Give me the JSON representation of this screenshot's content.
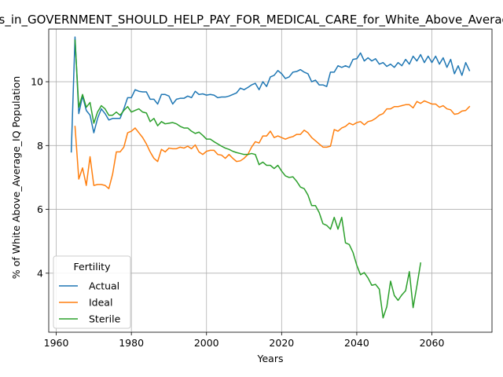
{
  "chart_data": {
    "type": "line",
    "title": "Voters_in_GOVERNMENT_SHOULD_HELP_PAY_FOR_MEDICAL_CARE_for_White_Above_Average_IQ",
    "xlabel": "Years",
    "ylabel": "% of White Above_Average_IQ Population",
    "xlim": [
      1958,
      2076
    ],
    "ylim": [
      2.15,
      11.65
    ],
    "xticks": [
      1960,
      1980,
      2000,
      2020,
      2040,
      2060
    ],
    "yticks": [
      4,
      6,
      8,
      10
    ],
    "grid": true,
    "legend": {
      "title": "Fertility",
      "placement": "lower-left"
    },
    "series": [
      {
        "name": "Actual",
        "color": "#1f77b4",
        "x": [
          1964,
          1965,
          1966,
          1967,
          1968,
          1969,
          1970,
          1971,
          1972,
          1973,
          1974,
          1975,
          1976,
          1977,
          1978,
          1979,
          1980,
          1981,
          1982,
          1983,
          1984,
          1985,
          1986,
          1987,
          1988,
          1989,
          1990,
          1991,
          1992,
          1993,
          1994,
          1995,
          1996,
          1997,
          1998,
          1999,
          2000,
          2001,
          2002,
          2003,
          2004,
          2005,
          2006,
          2007,
          2008,
          2009,
          2010,
          2011,
          2012,
          2013,
          2014,
          2015,
          2016,
          2017,
          2018,
          2019,
          2020,
          2021,
          2022,
          2023,
          2024,
          2025,
          2026,
          2027,
          2028,
          2029,
          2030,
          2031,
          2032,
          2033,
          2034,
          2035,
          2036,
          2037,
          2038,
          2039,
          2040,
          2041,
          2042,
          2043,
          2044,
          2045,
          2046,
          2047,
          2048,
          2049,
          2050,
          2051,
          2052,
          2053,
          2054,
          2055,
          2056,
          2057,
          2058,
          2059,
          2060,
          2061,
          2062,
          2063,
          2064,
          2065,
          2066,
          2067,
          2068,
          2069,
          2070
        ],
        "values": [
          7.8,
          11.4,
          9.0,
          9.55,
          9.1,
          8.95,
          8.4,
          8.85,
          9.15,
          9.0,
          8.8,
          8.85,
          8.85,
          8.85,
          9.15,
          9.5,
          9.5,
          9.75,
          9.7,
          9.68,
          9.68,
          9.45,
          9.45,
          9.3,
          9.6,
          9.6,
          9.55,
          9.3,
          9.45,
          9.48,
          9.48,
          9.55,
          9.5,
          9.7,
          9.6,
          9.62,
          9.58,
          9.6,
          9.58,
          9.5,
          9.52,
          9.52,
          9.55,
          9.6,
          9.65,
          9.8,
          9.75,
          9.82,
          9.9,
          9.95,
          9.75,
          10.0,
          9.85,
          10.15,
          10.2,
          10.35,
          10.25,
          10.1,
          10.15,
          10.3,
          10.32,
          10.38,
          10.3,
          10.25,
          10.0,
          10.05,
          9.9,
          9.9,
          9.85,
          10.3,
          10.3,
          10.5,
          10.45,
          10.5,
          10.45,
          10.7,
          10.72,
          10.9,
          10.65,
          10.75,
          10.65,
          10.72,
          10.55,
          10.6,
          10.48,
          10.55,
          10.45,
          10.6,
          10.5,
          10.7,
          10.55,
          10.8,
          10.65,
          10.85,
          10.6,
          10.8,
          10.6,
          10.8,
          10.55,
          10.75,
          10.45,
          10.7,
          10.25,
          10.5,
          10.2,
          10.6,
          10.35
        ]
      },
      {
        "name": "Ideal",
        "color": "#ff7f0e",
        "x": [
          1965,
          1966,
          1967,
          1968,
          1969,
          1970,
          1971,
          1972,
          1973,
          1974,
          1975,
          1976,
          1977,
          1978,
          1979,
          1980,
          1981,
          1982,
          1983,
          1984,
          1985,
          1986,
          1987,
          1988,
          1989,
          1990,
          1991,
          1992,
          1993,
          1994,
          1995,
          1996,
          1997,
          1998,
          1999,
          2000,
          2001,
          2002,
          2003,
          2004,
          2005,
          2006,
          2007,
          2008,
          2009,
          2010,
          2011,
          2012,
          2013,
          2014,
          2015,
          2016,
          2017,
          2018,
          2019,
          2020,
          2021,
          2022,
          2023,
          2024,
          2025,
          2026,
          2027,
          2028,
          2029,
          2030,
          2031,
          2032,
          2033,
          2034,
          2035,
          2036,
          2037,
          2038,
          2039,
          2040,
          2041,
          2042,
          2043,
          2044,
          2045,
          2046,
          2047,
          2048,
          2049,
          2050,
          2051,
          2052,
          2053,
          2054,
          2055,
          2056,
          2057,
          2058,
          2059,
          2060,
          2061,
          2062,
          2063,
          2064,
          2065,
          2066,
          2067,
          2068,
          2069,
          2070
        ],
        "values": [
          8.6,
          6.95,
          7.3,
          6.75,
          7.65,
          6.75,
          6.78,
          6.78,
          6.75,
          6.65,
          7.1,
          7.8,
          7.8,
          7.95,
          8.4,
          8.45,
          8.55,
          8.4,
          8.25,
          8.05,
          7.8,
          7.6,
          7.5,
          7.88,
          7.8,
          7.92,
          7.9,
          7.9,
          7.95,
          7.92,
          7.98,
          7.9,
          8.02,
          7.8,
          7.72,
          7.82,
          7.85,
          7.85,
          7.72,
          7.7,
          7.6,
          7.72,
          7.6,
          7.5,
          7.52,
          7.6,
          7.72,
          7.95,
          8.12,
          8.08,
          8.3,
          8.3,
          8.45,
          8.25,
          8.3,
          8.25,
          8.2,
          8.25,
          8.28,
          8.35,
          8.35,
          8.48,
          8.4,
          8.25,
          8.15,
          8.05,
          7.95,
          7.95,
          7.98,
          8.5,
          8.45,
          8.55,
          8.6,
          8.7,
          8.65,
          8.72,
          8.75,
          8.65,
          8.75,
          8.78,
          8.85,
          8.95,
          9.0,
          9.15,
          9.15,
          9.22,
          9.22,
          9.25,
          9.28,
          9.28,
          9.18,
          9.38,
          9.32,
          9.4,
          9.35,
          9.3,
          9.3,
          9.2,
          9.25,
          9.15,
          9.12,
          8.98,
          9.0,
          9.08,
          9.1,
          9.22
        ]
      },
      {
        "name": "Sterile",
        "color": "#2ca02c",
        "x": [
          1965,
          1966,
          1967,
          1968,
          1969,
          1970,
          1971,
          1972,
          1973,
          1974,
          1975,
          1976,
          1977,
          1978,
          1979,
          1980,
          1981,
          1982,
          1983,
          1984,
          1985,
          1986,
          1987,
          1988,
          1989,
          1990,
          1991,
          1992,
          1993,
          1994,
          1995,
          1996,
          1997,
          1998,
          1999,
          2000,
          2001,
          2002,
          2003,
          2004,
          2005,
          2006,
          2007,
          2008,
          2009,
          2010,
          2011,
          2012,
          2013,
          2014,
          2015,
          2016,
          2017,
          2018,
          2019,
          2020,
          2021,
          2022,
          2023,
          2024,
          2025,
          2026,
          2027,
          2028,
          2029,
          2030,
          2031,
          2032,
          2033,
          2034,
          2035,
          2036,
          2037,
          2038,
          2039,
          2040,
          2041,
          2042,
          2043,
          2044,
          2045,
          2046,
          2047,
          2048,
          2049,
          2050,
          2051,
          2052,
          2053,
          2054,
          2055,
          2056,
          2057
        ],
        "values": [
          11.3,
          9.2,
          9.6,
          9.2,
          9.35,
          8.7,
          9.05,
          9.25,
          9.15,
          8.95,
          8.95,
          9.05,
          8.95,
          9.1,
          9.22,
          9.05,
          9.1,
          9.15,
          9.05,
          9.02,
          8.75,
          8.85,
          8.62,
          8.75,
          8.68,
          8.7,
          8.72,
          8.68,
          8.6,
          8.55,
          8.55,
          8.45,
          8.38,
          8.42,
          8.32,
          8.2,
          8.2,
          8.12,
          8.05,
          7.98,
          7.92,
          7.88,
          7.82,
          7.78,
          7.75,
          7.72,
          7.72,
          7.75,
          7.72,
          7.4,
          7.48,
          7.38,
          7.38,
          7.28,
          7.38,
          7.2,
          7.05,
          7.0,
          7.02,
          6.88,
          6.7,
          6.65,
          6.45,
          6.12,
          6.12,
          5.9,
          5.55,
          5.5,
          5.38,
          5.75,
          5.38,
          5.75,
          4.95,
          4.9,
          4.65,
          4.25,
          3.95,
          4.02,
          3.85,
          3.62,
          3.65,
          3.5,
          2.6,
          2.95,
          3.75,
          3.3,
          3.15,
          3.32,
          3.45,
          4.05,
          2.92,
          3.6,
          4.32
        ]
      }
    ]
  }
}
